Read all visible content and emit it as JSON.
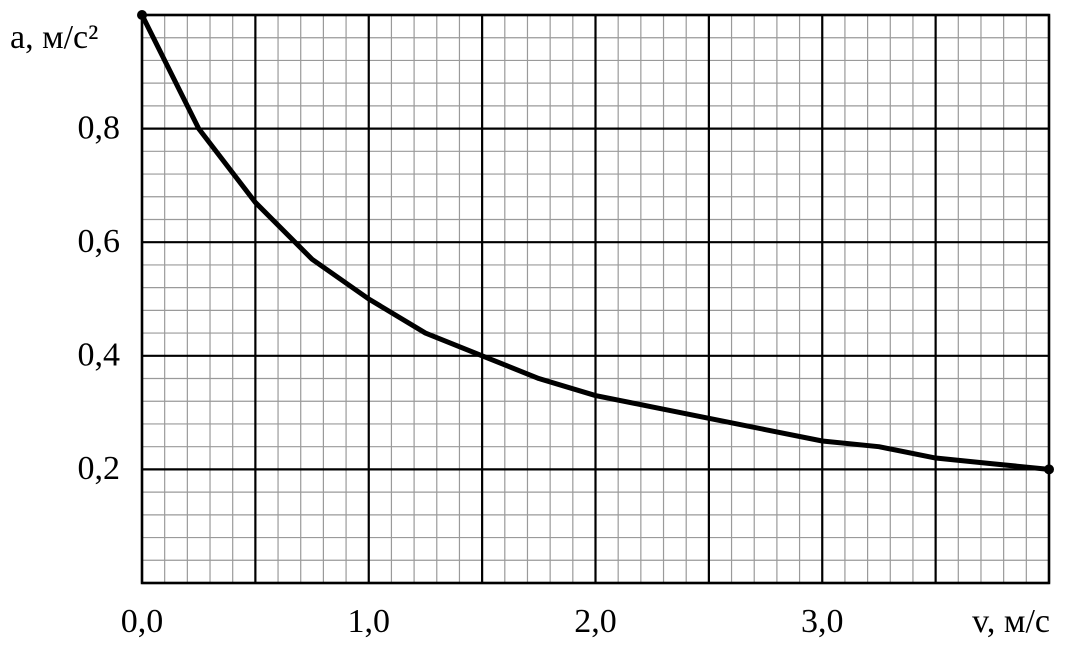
{
  "chart_data": {
    "type": "line",
    "x_label": "v, м/с",
    "y_label": "a, м/с²",
    "x": [
      0,
      0.25,
      0.5,
      0.75,
      1,
      1.25,
      1.5,
      1.75,
      2,
      2.25,
      2.5,
      2.75,
      3,
      3.25,
      3.5,
      3.75,
      4
    ],
    "values": [
      1,
      0.8,
      0.67,
      0.57,
      0.5,
      0.44,
      0.4,
      0.36,
      0.33,
      0.31,
      0.29,
      0.27,
      0.25,
      0.24,
      0.22,
      0.21,
      0.2
    ],
    "color": "#000000",
    "xlim": [
      0,
      4
    ],
    "ylim": [
      0,
      1
    ],
    "xticks": [
      {
        "value": 0,
        "label": "0,0"
      },
      {
        "value": 1,
        "label": "1,0"
      },
      {
        "value": 2,
        "label": "2,0"
      },
      {
        "value": 3,
        "label": "3,0"
      }
    ],
    "yticks": [
      {
        "value": 0.2,
        "label": "0,2"
      },
      {
        "value": 0.4,
        "label": "0,4"
      },
      {
        "value": 0.6,
        "label": "0,6"
      },
      {
        "value": 0.8,
        "label": "0,8"
      }
    ],
    "grid": {
      "x_major": 0.5,
      "x_minor": 0.1,
      "y_major": 0.2,
      "y_minor": 0.04
    }
  }
}
